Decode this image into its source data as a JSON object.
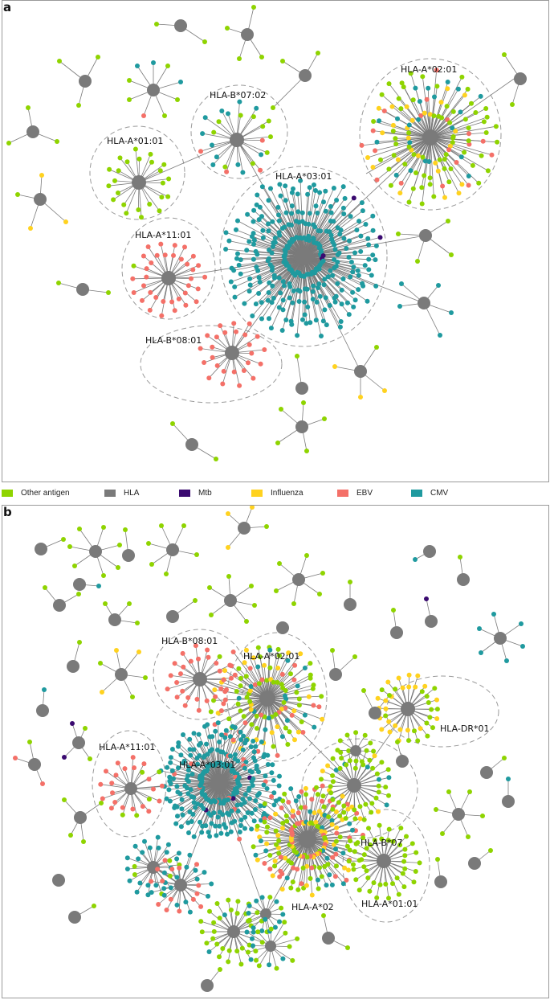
{
  "colors": {
    "other_antigen": "#8fd400",
    "hla": "#7a7a7a",
    "mtb": "#3a0a70",
    "influenza": "#ffd21f",
    "ebv": "#f47068",
    "cmv": "#1f9a9f",
    "edge": "#7a7a7a",
    "ring": "#9a9a9a"
  },
  "panel_a": {
    "letter": "a",
    "clusters": [
      {
        "label": "HLA-A*02:01",
        "center_color": "hla"
      },
      {
        "label": "HLA-B*07:02",
        "center_color": "hla"
      },
      {
        "label": "HLA-A*01:01",
        "center_color": "hla"
      },
      {
        "label": "HLA-A*03:01",
        "center_color": "hla"
      },
      {
        "label": "HLA-A*11:01",
        "center_color": "hla"
      },
      {
        "label": "HLA-B*08:01",
        "center_color": "hla"
      }
    ]
  },
  "legend": {
    "items": [
      {
        "label": "Other antigen",
        "color": "other_antigen"
      },
      {
        "label": "HLA",
        "color": "hla"
      },
      {
        "label": "Mtb",
        "color": "mtb"
      },
      {
        "label": "Influenza",
        "color": "influenza"
      },
      {
        "label": "EBV",
        "color": "ebv"
      },
      {
        "label": "CMV",
        "color": "cmv"
      }
    ]
  },
  "panel_b": {
    "letter": "b",
    "clusters": [
      {
        "label": "HLA-B*08:01"
      },
      {
        "label": "HLA-A*02:01"
      },
      {
        "label": "HLA-DR*01"
      },
      {
        "label": "HLA-A*11:01"
      },
      {
        "label": "HLA-A*03:01"
      },
      {
        "label": "HLA-B*07"
      },
      {
        "label": "HLA-A*02"
      },
      {
        "label": "HLA-A*01:01"
      }
    ]
  }
}
